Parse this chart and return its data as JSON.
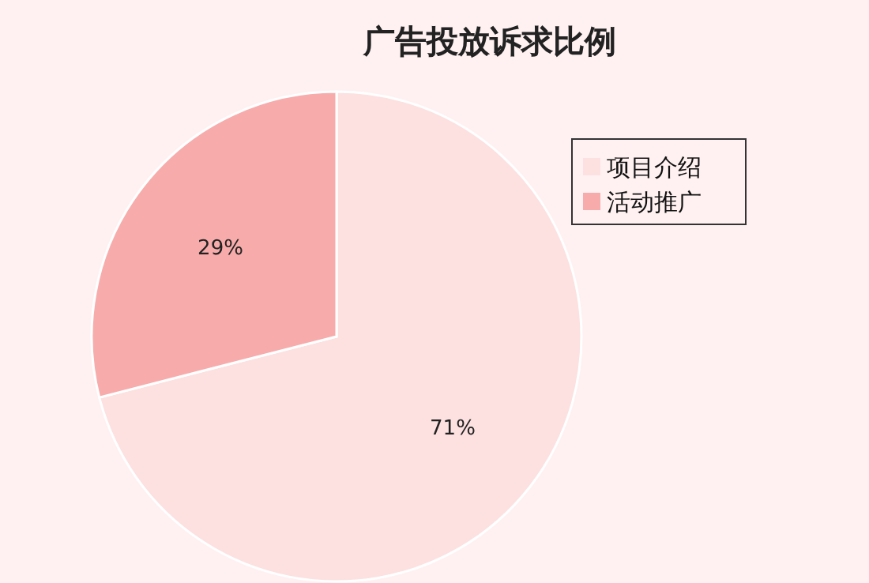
{
  "chart_data": {
    "type": "pie",
    "title": "广告投放诉求比例",
    "categories": [
      "项目介绍",
      "活动推广"
    ],
    "values": [
      71,
      29
    ],
    "colors": [
      "#fde0e0",
      "#f8abab"
    ],
    "value_labels": [
      "71%",
      "29%"
    ],
    "legend": "right"
  }
}
